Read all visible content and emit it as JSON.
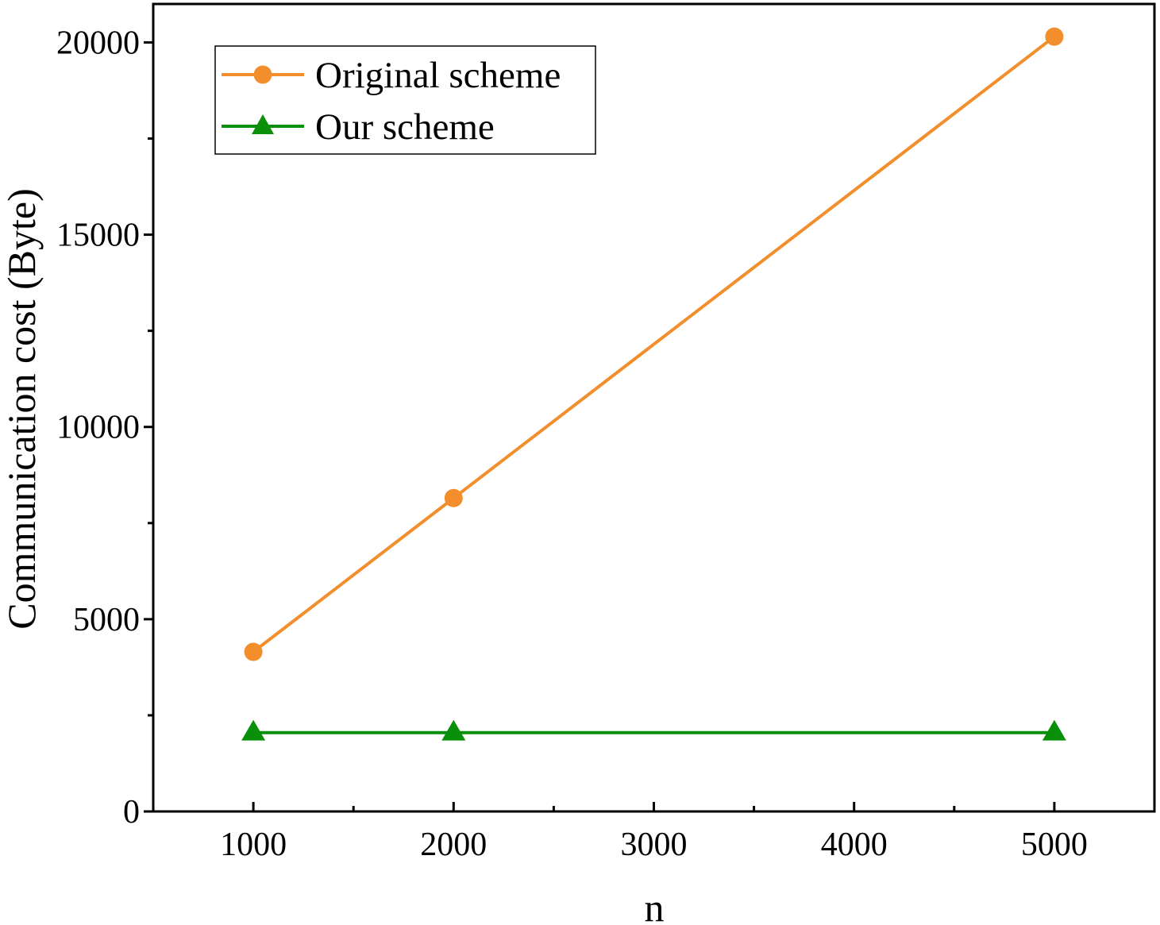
{
  "chart_data": {
    "type": "line",
    "xlabel": "n",
    "ylabel": "Communication cost (Byte)",
    "xlim": [
      500,
      5500
    ],
    "ylim": [
      0,
      21000
    ],
    "x_ticks": [
      1000,
      2000,
      3000,
      4000,
      5000
    ],
    "x_minor_ticks": [
      1500,
      2500,
      3500,
      4500
    ],
    "y_ticks": [
      0,
      5000,
      10000,
      15000,
      20000
    ],
    "y_minor_ticks": [
      2500,
      7500,
      12500,
      17500
    ],
    "grid": false,
    "legend_position": "top-left",
    "x": [
      1000,
      2000,
      5000
    ],
    "series": [
      {
        "name": "Original scheme",
        "values": [
          4150,
          8150,
          20150
        ],
        "color": "#f28e2b",
        "marker": "circle"
      },
      {
        "name": "Our scheme",
        "values": [
          2050,
          2050,
          2050
        ],
        "color": "#0a8f0a",
        "marker": "triangle"
      }
    ]
  }
}
